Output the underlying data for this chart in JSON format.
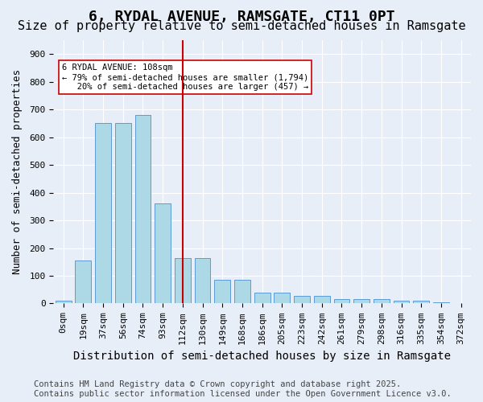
{
  "title1": "6, RYDAL AVENUE, RAMSGATE, CT11 0PT",
  "title2": "Size of property relative to semi-detached houses in Ramsgate",
  "xlabel": "Distribution of semi-detached houses by size in Ramsgate",
  "ylabel": "Number of semi-detached properties",
  "categories": [
    "0sqm",
    "19sqm",
    "37sqm",
    "56sqm",
    "74sqm",
    "93sqm",
    "112sqm",
    "130sqm",
    "149sqm",
    "168sqm",
    "186sqm",
    "205sqm",
    "223sqm",
    "242sqm",
    "261sqm",
    "279sqm",
    "298sqm",
    "316sqm",
    "335sqm",
    "354sqm",
    "372sqm"
  ],
  "values": [
    10,
    155,
    650,
    650,
    680,
    360,
    165,
    165,
    85,
    85,
    40,
    38,
    28,
    28,
    15,
    15,
    15,
    10,
    10,
    5,
    0
  ],
  "bar_color": "#add8e6",
  "bar_edge_color": "#5b9bd5",
  "bg_color": "#e8eef8",
  "grid_color": "#ffffff",
  "vline_x_index": 6,
  "vline_color": "#cc0000",
  "annotation_line1": "6 RYDAL AVENUE: 108sqm",
  "annotation_line2": "← 79% of semi-detached houses are smaller (1,794)",
  "annotation_line3": "   20% of semi-detached houses are larger (457) →",
  "annotation_box_color": "#ffffff",
  "annotation_box_edgecolor": "#cc0000",
  "footer_text": "Contains HM Land Registry data © Crown copyright and database right 2025.\nContains public sector information licensed under the Open Government Licence v3.0.",
  "ylim": [
    0,
    950
  ],
  "yticks": [
    0,
    100,
    200,
    300,
    400,
    500,
    600,
    700,
    800,
    900
  ],
  "title1_fontsize": 13,
  "title2_fontsize": 11,
  "xlabel_fontsize": 10,
  "ylabel_fontsize": 9,
  "tick_fontsize": 8,
  "footer_fontsize": 7.5
}
